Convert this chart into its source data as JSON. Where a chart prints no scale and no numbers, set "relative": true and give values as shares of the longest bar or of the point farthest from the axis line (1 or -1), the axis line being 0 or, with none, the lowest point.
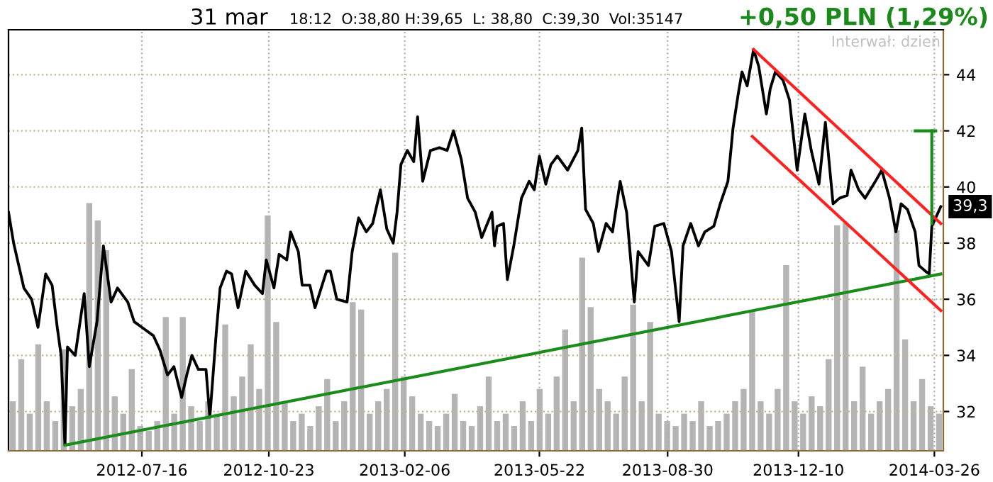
{
  "chart_data": [
    {
      "type": "line",
      "title": "31 mar",
      "subtitle": "18:12  O:38,80 H:39,65  L: 38,80  C:39,30  Vol:35147",
      "annotations": [
        "+0,50 PLN (1,29%)",
        "Interwał: dzien",
        {
          "text": "39,3",
          "x": "2014-03-31",
          "y": 39.3
        }
      ],
      "xlim": [
        "2012-04-03",
        "2014-04-02"
      ],
      "ylim": [
        30.6,
        45.6
      ],
      "xticks": [
        "2012-07-16",
        "2012-10-23",
        "2013-02-06",
        "2013-05-22",
        "2013-08-30",
        "2013-12-10",
        "2014-03-26"
      ],
      "yticks": [
        32,
        34,
        36,
        38,
        40,
        42,
        44
      ],
      "grid": true,
      "legend": false,
      "marker": "none",
      "line_style": "solid",
      "series": [
        {
          "color": "#000000",
          "x": [
            "2012-04-03",
            "2012-04-07",
            "2012-04-11",
            "2012-04-15",
            "2012-04-21",
            "2012-04-26",
            "2012-05-02",
            "2012-05-07",
            "2012-05-11",
            "2012-05-14",
            "2012-05-17",
            "2012-05-19",
            "2012-05-25",
            "2012-06-01",
            "2012-06-05",
            "2012-06-11",
            "2012-06-16",
            "2012-06-22",
            "2012-06-27",
            "2012-07-05",
            "2012-07-10",
            "2012-07-16",
            "2012-07-25",
            "2012-07-30",
            "2012-08-05",
            "2012-08-10",
            "2012-08-16",
            "2012-08-20",
            "2012-08-24",
            "2012-08-29",
            "2012-09-04",
            "2012-09-07",
            "2012-09-12",
            "2012-09-15",
            "2012-09-20",
            "2012-09-24",
            "2012-09-29",
            "2012-10-05",
            "2012-10-12",
            "2012-10-18",
            "2012-10-21",
            "2012-10-27",
            "2012-10-31",
            "2012-11-06",
            "2012-11-09",
            "2012-11-15",
            "2012-11-18",
            "2012-11-24",
            "2012-11-28",
            "2012-12-07",
            "2012-12-10",
            "2012-12-15",
            "2012-12-23",
            "2012-12-27",
            "2013-01-01",
            "2013-01-07",
            "2013-01-12",
            "2013-01-18",
            "2013-01-23",
            "2013-01-28",
            "2013-01-31",
            "2013-02-03",
            "2013-02-08",
            "2013-02-13",
            "2013-02-16",
            "2013-02-20",
            "2013-02-26",
            "2013-03-05",
            "2013-03-11",
            "2013-03-16",
            "2013-03-22",
            "2013-03-27",
            "2013-04-02",
            "2013-04-07",
            "2013-04-15",
            "2013-04-17",
            "2013-04-19",
            "2013-04-24",
            "2013-04-27",
            "2013-05-02",
            "2013-05-08",
            "2013-05-14",
            "2013-05-18",
            "2013-05-22",
            "2013-05-27",
            "2013-05-31",
            "2013-06-05",
            "2013-06-13",
            "2013-06-21",
            "2013-06-24",
            "2013-06-27",
            "2013-07-03",
            "2013-07-07",
            "2013-07-13",
            "2013-07-18",
            "2013-07-24",
            "2013-07-29",
            "2013-08-04",
            "2013-08-07",
            "2013-08-15",
            "2013-08-20",
            "2013-08-27",
            "2013-09-02",
            "2013-09-08",
            "2013-09-11",
            "2013-09-17",
            "2013-09-23",
            "2013-09-28",
            "2013-10-05",
            "2013-10-10",
            "2013-10-16",
            "2013-10-20",
            "2013-10-24",
            "2013-10-27",
            "2013-10-31",
            "2013-11-05",
            "2013-11-09",
            "2013-11-15",
            "2013-11-18",
            "2013-11-22",
            "2013-11-28",
            "2013-12-03",
            "2013-12-09",
            "2013-12-15",
            "2013-12-20",
            "2013-12-26",
            "2013-12-31",
            "2014-01-06",
            "2014-01-11",
            "2014-01-17",
            "2014-01-20",
            "2014-01-26",
            "2014-01-31",
            "2014-02-08",
            "2014-02-13",
            "2014-02-19",
            "2014-02-24",
            "2014-02-28",
            "2014-03-05",
            "2014-03-11",
            "2014-03-14",
            "2014-03-19",
            "2014-03-22",
            "2014-03-24",
            "2014-03-27",
            "2014-03-31"
          ],
          "values": [
            39.1,
            38.0,
            37.2,
            36.4,
            36.0,
            35.0,
            36.9,
            36.5,
            35.0,
            34.0,
            30.8,
            34.3,
            34.0,
            36.2,
            33.6,
            35.2,
            37.9,
            35.9,
            36.4,
            35.9,
            35.2,
            35.0,
            34.7,
            34.2,
            33.3,
            33.6,
            32.5,
            33.3,
            34.0,
            33.5,
            33.5,
            31.8,
            34.8,
            36.4,
            37.0,
            36.9,
            35.7,
            37.0,
            36.5,
            36.2,
            37.4,
            36.4,
            37.6,
            37.4,
            38.4,
            37.7,
            36.5,
            36.5,
            35.7,
            37.0,
            37.0,
            36.0,
            35.9,
            37.7,
            38.9,
            38.4,
            38.7,
            39.9,
            38.5,
            38.0,
            39.1,
            40.8,
            41.3,
            40.9,
            42.5,
            40.2,
            41.3,
            41.4,
            41.3,
            42.0,
            41.0,
            39.6,
            39.1,
            38.2,
            39.1,
            37.9,
            38.6,
            38.7,
            36.7,
            37.9,
            39.6,
            40.2,
            39.9,
            41.1,
            40.1,
            40.8,
            41.1,
            40.6,
            41.3,
            42.1,
            39.2,
            38.7,
            37.7,
            38.7,
            38.4,
            40.2,
            39.1,
            35.9,
            37.7,
            37.2,
            38.6,
            38.7,
            37.7,
            35.2,
            37.9,
            38.7,
            37.9,
            38.4,
            38.6,
            39.4,
            40.2,
            42.1,
            43.3,
            44.1,
            43.6,
            44.9,
            44.3,
            42.6,
            43.5,
            44.1,
            43.8,
            43.1,
            40.6,
            42.6,
            41.3,
            40.1,
            42.3,
            39.4,
            39.6,
            39.7,
            40.6,
            39.9,
            39.6,
            40.2,
            40.6,
            39.6,
            38.4,
            39.4,
            39.2,
            38.4,
            37.2,
            37.0,
            36.9,
            38.6,
            38.9,
            39.3
          ]
        },
        {
          "type": "line",
          "color": "#1a8c1a",
          "x": [
            "2012-05-17",
            "2014-03-31"
          ],
          "values": [
            30.8,
            36.9
          ]
        },
        {
          "type": "line",
          "color": "#ff2020",
          "x": [
            "2013-11-05",
            "2014-03-31"
          ],
          "values": [
            44.9,
            38.7
          ]
        },
        {
          "type": "line",
          "color": "#ff2020",
          "x": [
            "2013-11-04",
            "2014-03-31"
          ],
          "values": [
            41.8,
            35.6
          ]
        },
        {
          "type": "line",
          "color": "#1a8c1a",
          "x": [
            "2014-03-11",
            "2014-03-27"
          ],
          "values": [
            42.0,
            42.0
          ]
        },
        {
          "type": "line",
          "color": "#1a8c1a",
          "x": [
            "2014-03-24",
            "2014-03-24"
          ],
          "values": [
            42.0,
            38.7
          ]
        }
      ]
    },
    {
      "type": "bar",
      "relative": true,
      "color": "#b4b4b4",
      "categories": [
        null,
        null,
        null,
        null,
        null,
        null,
        null,
        null,
        null,
        null,
        null,
        null,
        null,
        null,
        null,
        null,
        null,
        null,
        null,
        null,
        null,
        null,
        null,
        null,
        null,
        null,
        null,
        null,
        null,
        null,
        null,
        null,
        null,
        null,
        null,
        null,
        null,
        null,
        null,
        null,
        null,
        null,
        null,
        null,
        null,
        null,
        null,
        null,
        null,
        null,
        null,
        null,
        null,
        null,
        null,
        null,
        null,
        null,
        null,
        null,
        null,
        null,
        null,
        null,
        null,
        null,
        null,
        null,
        null,
        null,
        null,
        null,
        null,
        null,
        null,
        null,
        null,
        null,
        null,
        null,
        null,
        null,
        null,
        null,
        null,
        null,
        null,
        null,
        null,
        null,
        null,
        null,
        null,
        null,
        null,
        null,
        null,
        null,
        null,
        null,
        null,
        null,
        null,
        null,
        null,
        null,
        null,
        null,
        null,
        null
      ],
      "values": [
        0.2,
        0.37,
        0.15,
        0.43,
        0.2,
        0.12,
        0.41,
        0.18,
        0.25,
        1.0,
        0.93,
        0.81,
        0.22,
        0.15,
        0.33,
        0.1,
        0.08,
        0.12,
        0.54,
        0.15,
        0.54,
        0.18,
        0.12,
        0.2,
        0.15,
        0.51,
        0.22,
        0.3,
        0.43,
        0.25,
        0.95,
        0.52,
        0.2,
        0.12,
        0.15,
        0.1,
        0.18,
        0.29,
        0.12,
        0.2,
        0.6,
        0.57,
        0.15,
        0.2,
        0.25,
        0.8,
        0.3,
        0.22,
        0.15,
        0.12,
        0.1,
        0.15,
        0.23,
        0.12,
        0.1,
        0.18,
        0.3,
        0.12,
        0.15,
        0.1,
        0.2,
        0.12,
        0.25,
        0.15,
        0.3,
        0.49,
        0.2,
        0.78,
        0.58,
        0.25,
        0.2,
        0.15,
        0.3,
        0.59,
        0.2,
        0.52,
        0.15,
        0.12,
        0.1,
        0.15,
        0.12,
        0.2,
        0.1,
        0.12,
        0.15,
        0.2,
        0.25,
        0.56,
        0.2,
        0.15,
        0.25,
        0.75,
        0.2,
        0.15,
        0.22,
        0.18,
        0.37,
        0.91,
        0.92,
        0.2,
        0.34,
        0.15,
        0.2,
        0.25,
        0.89,
        0.45,
        0.2,
        0.29,
        0.18,
        0.15
      ]
    }
  ]
}
